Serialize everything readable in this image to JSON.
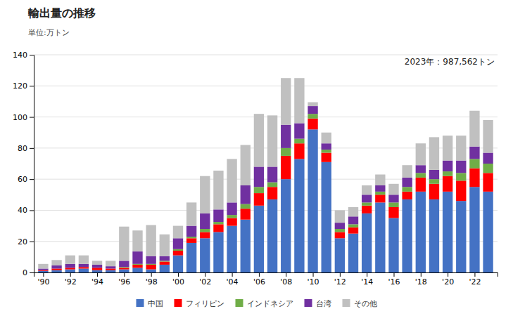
{
  "chart_data": {
    "type": "bar",
    "stacked": true,
    "title": "輸出量の推移",
    "subtitle": "単位:万トン",
    "annotation": "2023年：987,562トン",
    "x": [
      1990,
      1991,
      1992,
      1993,
      1994,
      1995,
      1996,
      1997,
      1998,
      1999,
      2000,
      2001,
      2002,
      2003,
      2004,
      2005,
      2006,
      2007,
      2008,
      2009,
      2010,
      2011,
      2012,
      2013,
      2014,
      2015,
      2016,
      2017,
      2018,
      2019,
      2020,
      2021,
      2022,
      2023
    ],
    "xlim": [
      1989.3,
      2023.7
    ],
    "xticks": [
      {
        "value": 1990,
        "label": "'90"
      },
      {
        "value": 1992,
        "label": "'92"
      },
      {
        "value": 1994,
        "label": "'94"
      },
      {
        "value": 1996,
        "label": "'96"
      },
      {
        "value": 1998,
        "label": "'98"
      },
      {
        "value": 2000,
        "label": "'00"
      },
      {
        "value": 2002,
        "label": "'02"
      },
      {
        "value": 2004,
        "label": "'04"
      },
      {
        "value": 2006,
        "label": "'06"
      },
      {
        "value": 2008,
        "label": "'08"
      },
      {
        "value": 2010,
        "label": "'10"
      },
      {
        "value": 2012,
        "label": "'12"
      },
      {
        "value": 2014,
        "label": "'14"
      },
      {
        "value": 2016,
        "label": "'16"
      },
      {
        "value": 2018,
        "label": "'18"
      },
      {
        "value": 2020,
        "label": "'20"
      },
      {
        "value": 2022,
        "label": "'22"
      }
    ],
    "ylim": [
      0,
      140
    ],
    "yticks": [
      0,
      20,
      40,
      60,
      80,
      100,
      120,
      140
    ],
    "grid": true,
    "legend": "bottom",
    "series": [
      {
        "name": "中国",
        "color": "#4472C4",
        "values": [
          1.0,
          1.5,
          2.0,
          2.5,
          1.5,
          1.5,
          2.0,
          3.0,
          2.0,
          5.0,
          11.0,
          19.0,
          22.0,
          26.0,
          30.0,
          34.0,
          43.0,
          47.0,
          60.0,
          73.0,
          92.0,
          71.0,
          22.0,
          25.0,
          38.0,
          45.0,
          35.0,
          47.0,
          52.0,
          47.0,
          52.0,
          46.0,
          55.0,
          52.0
        ]
      },
      {
        "name": "フィリピン",
        "color": "#FF0000",
        "values": [
          0.5,
          1.0,
          1.0,
          1.0,
          1.5,
          1.0,
          1.0,
          2.0,
          3.0,
          2.0,
          3.0,
          3.0,
          4.0,
          5.0,
          5.0,
          7.0,
          8.0,
          8.0,
          15.0,
          10.0,
          7.0,
          6.0,
          4.0,
          4.0,
          5.0,
          5.0,
          7.0,
          5.0,
          9.0,
          10.0,
          10.0,
          13.0,
          12.0,
          12.0
        ]
      },
      {
        "name": "インドネシア",
        "color": "#70AD47",
        "values": [
          0.0,
          0.0,
          0.0,
          0.0,
          0.0,
          0.0,
          0.5,
          0.5,
          0.5,
          0.5,
          1.0,
          1.0,
          2.0,
          1.5,
          2.0,
          3.0,
          4.0,
          3.0,
          5.0,
          3.0,
          3.0,
          2.0,
          2.0,
          2.0,
          2.0,
          2.0,
          3.0,
          3.0,
          3.0,
          3.0,
          3.0,
          5.0,
          6.0,
          6.0
        ]
      },
      {
        "name": "台湾",
        "color": "#7030A0",
        "values": [
          1.0,
          2.0,
          2.5,
          2.0,
          2.0,
          1.5,
          4.0,
          8.0,
          5.0,
          3.0,
          7.0,
          7.0,
          10.0,
          8.0,
          8.0,
          12.0,
          13.0,
          10.0,
          15.0,
          10.0,
          5.0,
          4.0,
          4.0,
          5.0,
          5.0,
          4.0,
          5.0,
          6.0,
          5.0,
          6.0,
          7.0,
          8.0,
          8.0,
          7.0
        ]
      },
      {
        "name": "その他",
        "color": "#C0C0C0",
        "values": [
          3.0,
          3.5,
          5.5,
          5.5,
          2.5,
          3.5,
          22.0,
          13.5,
          20.0,
          14.0,
          8.0,
          15.0,
          24.0,
          25.0,
          28.0,
          26.0,
          34.0,
          33.0,
          30.0,
          29.0,
          2.5,
          7.0,
          8.0,
          6.0,
          6.0,
          7.0,
          7.0,
          8.0,
          14.0,
          21.0,
          16.0,
          16.0,
          23.0,
          21.0
        ]
      }
    ]
  }
}
